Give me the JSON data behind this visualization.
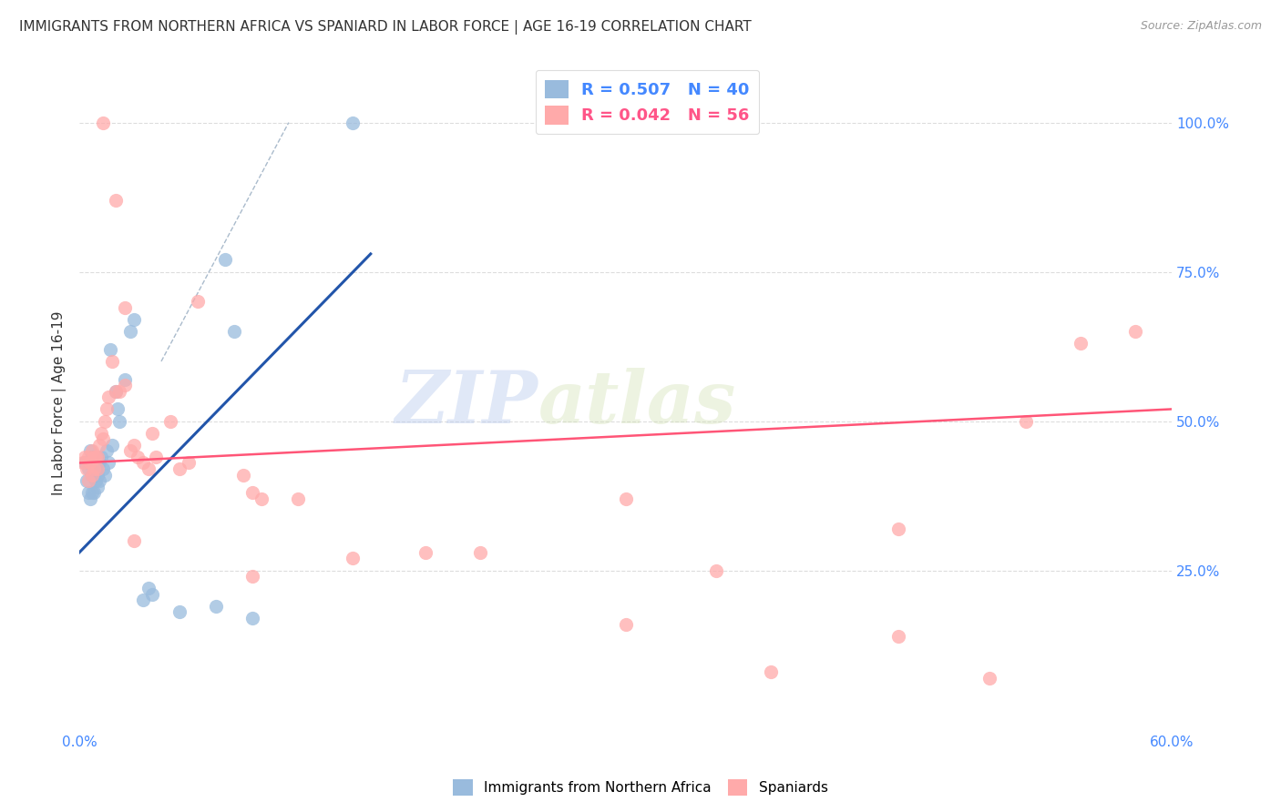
{
  "title": "IMMIGRANTS FROM NORTHERN AFRICA VS SPANIARD IN LABOR FORCE | AGE 16-19 CORRELATION CHART",
  "source": "Source: ZipAtlas.com",
  "ylabel": "In Labor Force | Age 16-19",
  "xlim": [
    0.0,
    0.6
  ],
  "ylim": [
    -0.02,
    1.08
  ],
  "xtick_positions": [
    0.0,
    0.1,
    0.2,
    0.3,
    0.4,
    0.5,
    0.6
  ],
  "xticklabels": [
    "0.0%",
    "",
    "",
    "",
    "",
    "",
    "60.0%"
  ],
  "yticks_right": [
    0.25,
    0.5,
    0.75,
    1.0
  ],
  "yticklabels_right": [
    "25.0%",
    "50.0%",
    "75.0%",
    "100.0%"
  ],
  "blue_color": "#99BBDD",
  "pink_color": "#FFAAAA",
  "blue_line_color": "#2255AA",
  "pink_line_color": "#FF5577",
  "dashed_line_color": "#AABBCC",
  "legend_text_color_blue": "#4488FF",
  "legend_text_color_pink": "#FF5588",
  "legend_R_blue": "0.507",
  "legend_N_blue": "40",
  "legend_R_pink": "0.042",
  "legend_N_pink": "56",
  "watermark_zip": "ZIP",
  "watermark_atlas": "atlas",
  "grid_color": "#DDDDDD",
  "blue_scatter_x": [
    0.003,
    0.004,
    0.005,
    0.005,
    0.006,
    0.006,
    0.007,
    0.007,
    0.007,
    0.008,
    0.008,
    0.009,
    0.009,
    0.01,
    0.01,
    0.01,
    0.011,
    0.011,
    0.012,
    0.013,
    0.014,
    0.015,
    0.016,
    0.017,
    0.018,
    0.02,
    0.021,
    0.022,
    0.025,
    0.028,
    0.03,
    0.035,
    0.038,
    0.04,
    0.055,
    0.075,
    0.08,
    0.085,
    0.095,
    0.15
  ],
  "blue_scatter_y": [
    0.43,
    0.4,
    0.42,
    0.38,
    0.45,
    0.37,
    0.41,
    0.44,
    0.38,
    0.43,
    0.38,
    0.42,
    0.4,
    0.44,
    0.41,
    0.39,
    0.43,
    0.4,
    0.44,
    0.42,
    0.41,
    0.45,
    0.43,
    0.62,
    0.46,
    0.55,
    0.52,
    0.5,
    0.57,
    0.65,
    0.67,
    0.2,
    0.22,
    0.21,
    0.18,
    0.19,
    0.77,
    0.65,
    0.17,
    1.0
  ],
  "pink_scatter_x": [
    0.002,
    0.003,
    0.004,
    0.005,
    0.005,
    0.006,
    0.007,
    0.007,
    0.008,
    0.008,
    0.009,
    0.01,
    0.01,
    0.011,
    0.012,
    0.013,
    0.014,
    0.015,
    0.016,
    0.018,
    0.02,
    0.022,
    0.025,
    0.028,
    0.03,
    0.032,
    0.035,
    0.038,
    0.04,
    0.042,
    0.05,
    0.055,
    0.06,
    0.065,
    0.09,
    0.095,
    0.1,
    0.12,
    0.15,
    0.19,
    0.22,
    0.3,
    0.35,
    0.45,
    0.5,
    0.52,
    0.55,
    0.58,
    0.013,
    0.02,
    0.025,
    0.03,
    0.095,
    0.3,
    0.45,
    0.38
  ],
  "pink_scatter_y": [
    0.43,
    0.44,
    0.42,
    0.44,
    0.4,
    0.43,
    0.45,
    0.41,
    0.44,
    0.42,
    0.44,
    0.42,
    0.44,
    0.46,
    0.48,
    0.47,
    0.5,
    0.52,
    0.54,
    0.6,
    0.55,
    0.55,
    0.56,
    0.45,
    0.46,
    0.44,
    0.43,
    0.42,
    0.48,
    0.44,
    0.5,
    0.42,
    0.43,
    0.7,
    0.41,
    0.38,
    0.37,
    0.37,
    0.27,
    0.28,
    0.28,
    0.37,
    0.25,
    0.32,
    0.07,
    0.5,
    0.63,
    0.65,
    1.0,
    0.87,
    0.69,
    0.3,
    0.24,
    0.16,
    0.14,
    0.08
  ],
  "blue_line_x": [
    0.0,
    0.16
  ],
  "blue_line_y": [
    0.28,
    0.78
  ],
  "pink_line_x": [
    0.0,
    0.6
  ],
  "pink_line_y": [
    0.43,
    0.52
  ],
  "dashed_line_x": [
    0.045,
    0.115
  ],
  "dashed_line_y": [
    0.6,
    1.0
  ]
}
